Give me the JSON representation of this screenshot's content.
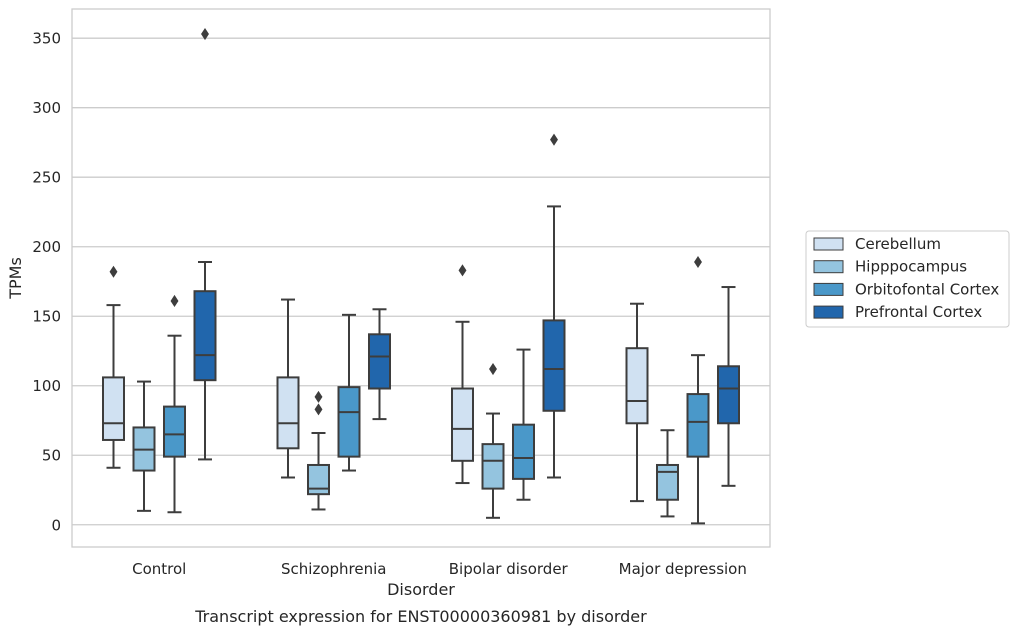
{
  "chart_data": {
    "type": "box",
    "caption": "Transcript expression for ENST00000360981 by disorder",
    "xlabel": "Disorder",
    "ylabel": "TPMs",
    "ylim": [
      -16,
      371
    ],
    "yticks": [
      0,
      50,
      100,
      150,
      200,
      250,
      300,
      350
    ],
    "grid": "horizontal",
    "legend_position": "right",
    "categories": [
      "Control",
      "Schizophrenia",
      "Bipolar disorder",
      "Major depression"
    ],
    "series": [
      {
        "name": "Cerebellum",
        "color": "#d0e1f2",
        "boxes": [
          {
            "whisker_low": 41,
            "q1": 61,
            "median": 73,
            "q3": 106,
            "whisker_high": 158,
            "outliers": [
              182
            ]
          },
          {
            "whisker_low": 34,
            "q1": 55,
            "median": 73,
            "q3": 106,
            "whisker_high": 162,
            "outliers": []
          },
          {
            "whisker_low": 30,
            "q1": 46,
            "median": 69,
            "q3": 98,
            "whisker_high": 146,
            "outliers": [
              183
            ]
          },
          {
            "whisker_low": 17,
            "q1": 73,
            "median": 89,
            "q3": 127,
            "whisker_high": 159,
            "outliers": []
          }
        ]
      },
      {
        "name": "Hipppocampus",
        "color": "#94c4df",
        "boxes": [
          {
            "whisker_low": 10,
            "q1": 39,
            "median": 54,
            "q3": 70,
            "whisker_high": 103,
            "outliers": []
          },
          {
            "whisker_low": 11,
            "q1": 22,
            "median": 26,
            "q3": 43,
            "whisker_high": 66,
            "outliers": [
              83,
              92
            ]
          },
          {
            "whisker_low": 5,
            "q1": 26,
            "median": 46,
            "q3": 58,
            "whisker_high": 80,
            "outliers": [
              112
            ]
          },
          {
            "whisker_low": 6,
            "q1": 18,
            "median": 38,
            "q3": 43,
            "whisker_high": 68,
            "outliers": []
          }
        ]
      },
      {
        "name": "Orbitofontal Cortex",
        "color": "#4a98c9",
        "boxes": [
          {
            "whisker_low": 9,
            "q1": 49,
            "median": 65,
            "q3": 85,
            "whisker_high": 136,
            "outliers": [
              161
            ]
          },
          {
            "whisker_low": 39,
            "q1": 49,
            "median": 81,
            "q3": 99,
            "whisker_high": 151,
            "outliers": []
          },
          {
            "whisker_low": 18,
            "q1": 33,
            "median": 48,
            "q3": 72,
            "whisker_high": 126,
            "outliers": []
          },
          {
            "whisker_low": 1,
            "q1": 49,
            "median": 74,
            "q3": 94,
            "whisker_high": 122,
            "outliers": [
              189
            ]
          }
        ]
      },
      {
        "name": "Prefrontal Cortex",
        "color": "#2166ac",
        "boxes": [
          {
            "whisker_low": 47,
            "q1": 104,
            "median": 122,
            "q3": 168,
            "whisker_high": 189,
            "outliers": [
              353
            ]
          },
          {
            "whisker_low": 76,
            "q1": 98,
            "median": 121,
            "q3": 137,
            "whisker_high": 155,
            "outliers": []
          },
          {
            "whisker_low": 34,
            "q1": 82,
            "median": 112,
            "q3": 147,
            "whisker_high": 229,
            "outliers": [
              277
            ]
          },
          {
            "whisker_low": 28,
            "q1": 73,
            "median": 98,
            "q3": 114,
            "whisker_high": 171,
            "outliers": []
          }
        ]
      }
    ]
  }
}
